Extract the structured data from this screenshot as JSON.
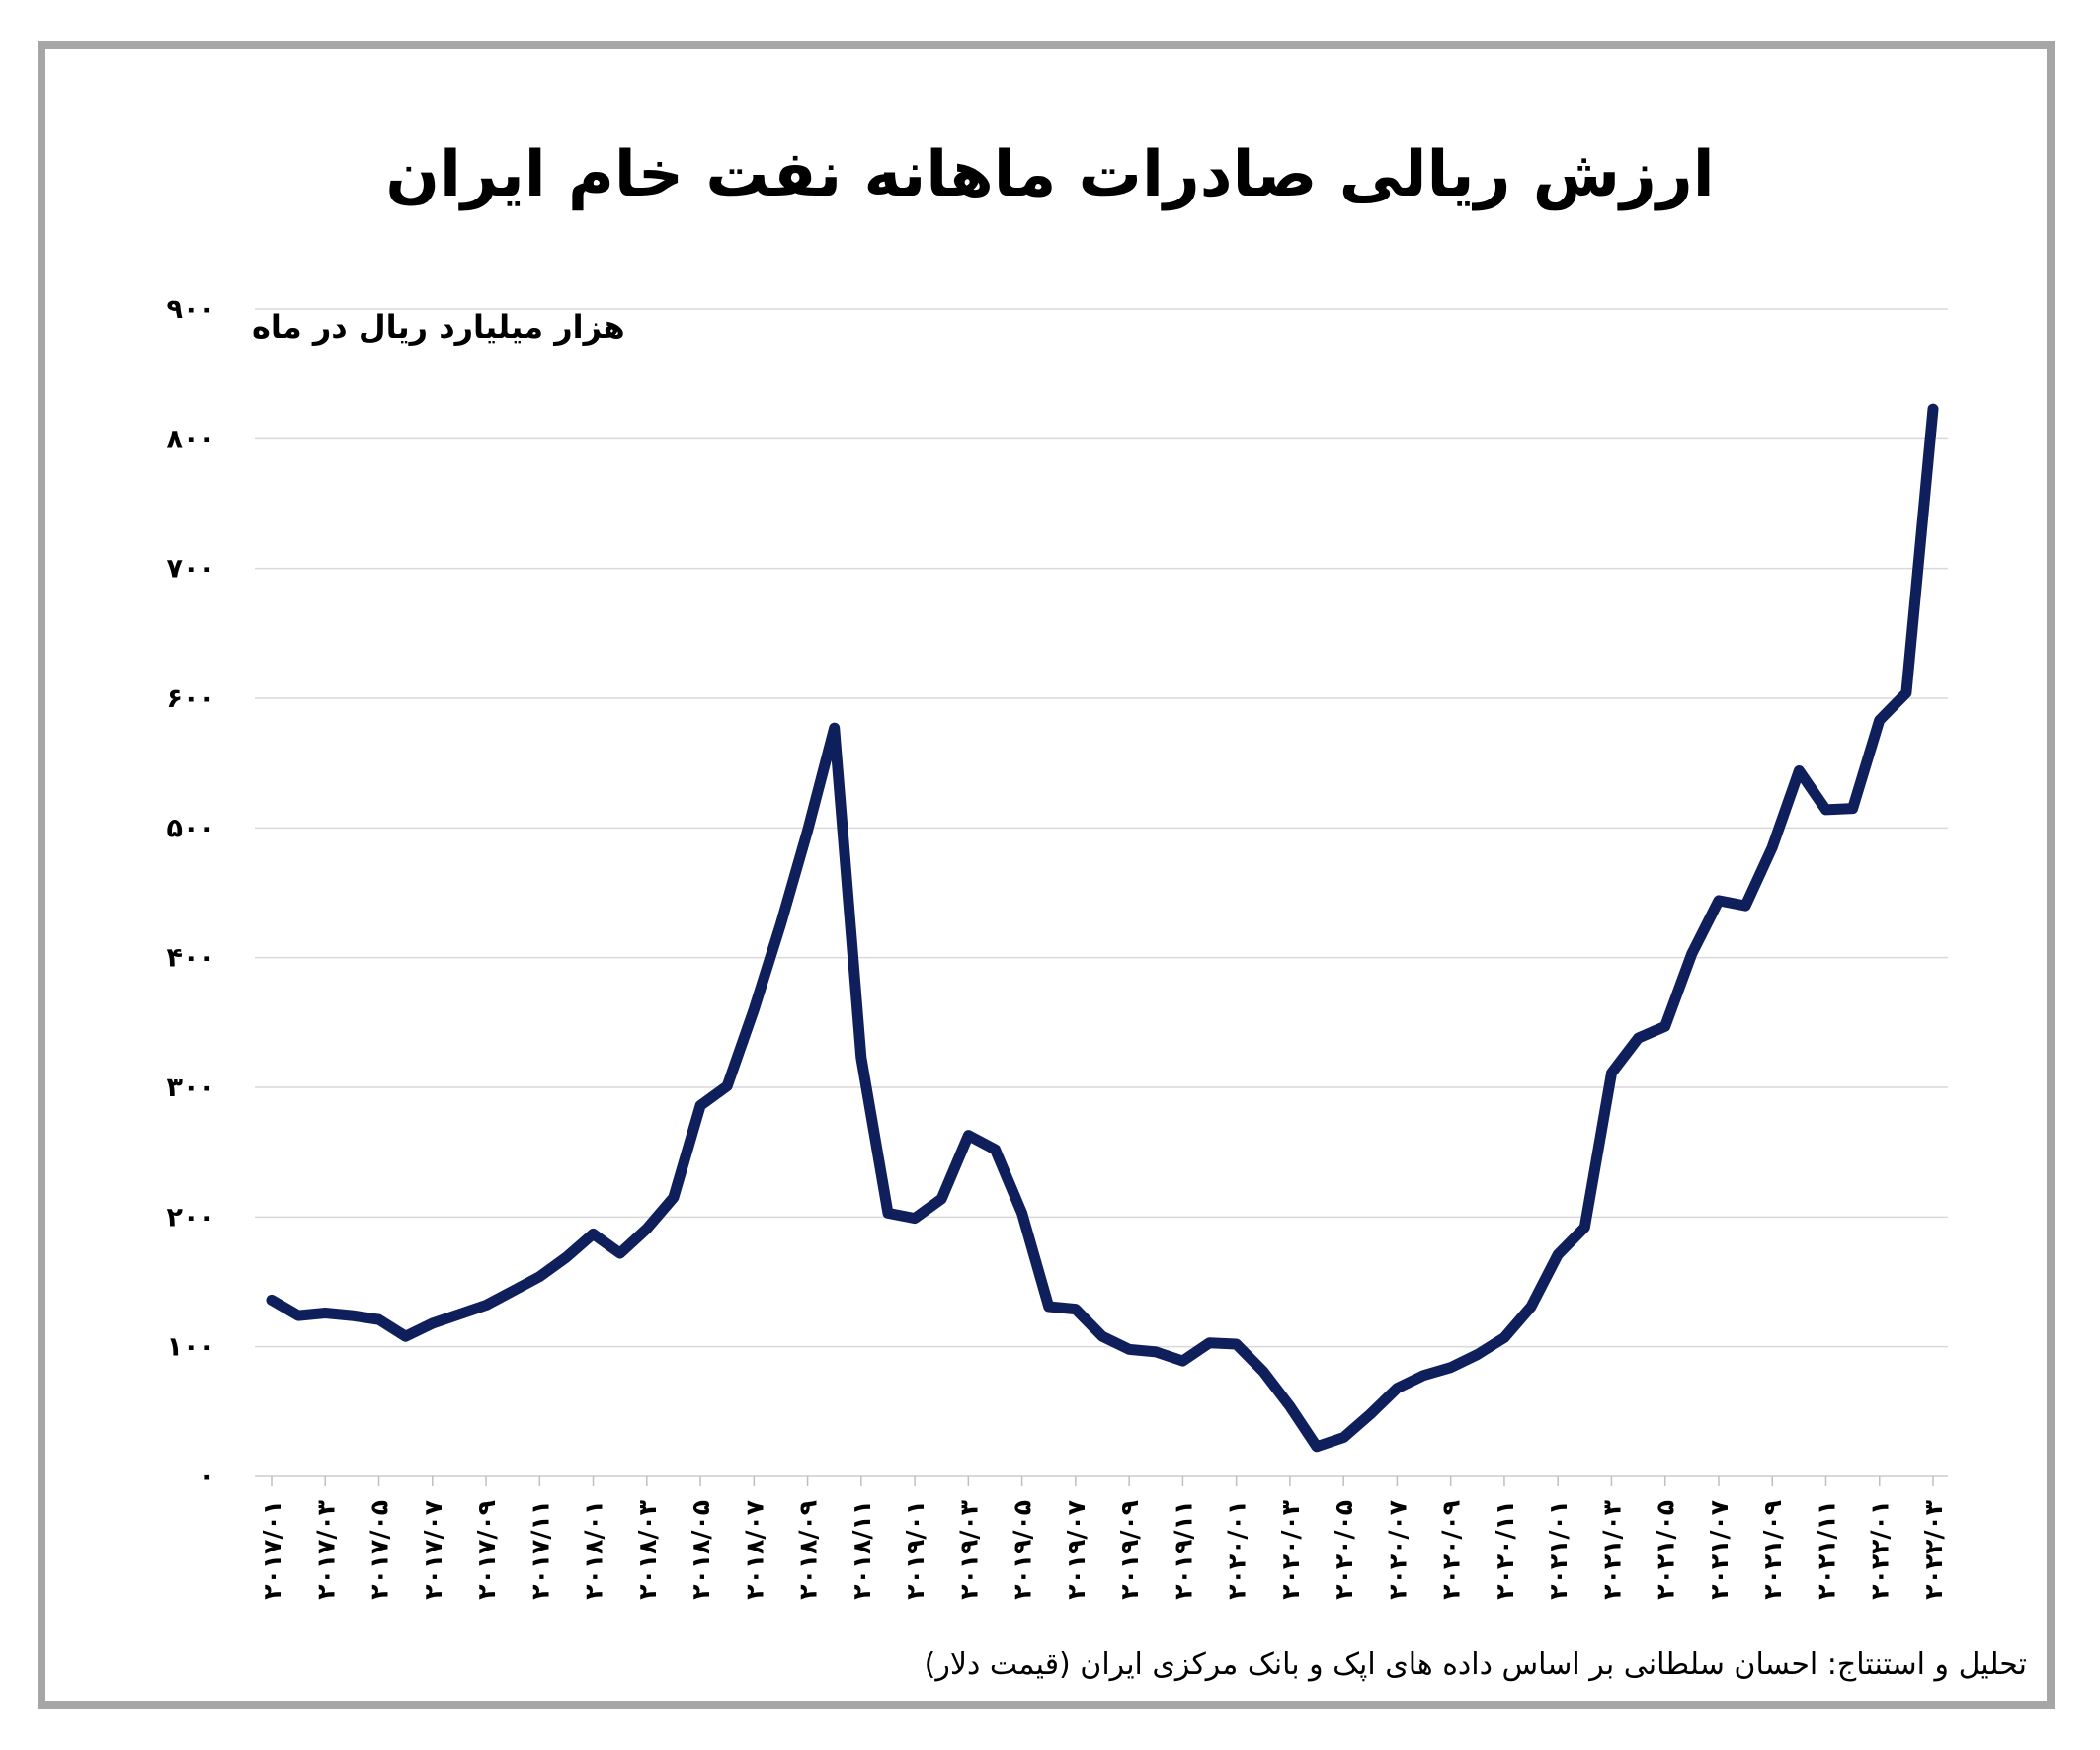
{
  "colors": {
    "line": "#0f1f5c",
    "grid": "#d9d9d9",
    "frame": "#a6a6a6"
  },
  "chart_data": {
    "type": "line",
    "title": "ارزش ریالی صادرات ماهانه نفت خام ایران",
    "ylabel": "هزار میلیارد ریال در ماه",
    "source": "تحلیل و استنتاج: احسان سلطانی بر اساس داده های اپک و بانک مرکزی ایران (قیمت دلار)",
    "ylim": [
      0,
      900
    ],
    "yticks": [
      0,
      100,
      200,
      300,
      400,
      500,
      600,
      700,
      800,
      900
    ],
    "ytick_labels": [
      "۰",
      "۱۰۰",
      "۲۰۰",
      "۳۰۰",
      "۴۰۰",
      "۵۰۰",
      "۶۰۰",
      "۷۰۰",
      "۸۰۰",
      "۹۰۰"
    ],
    "grid": true,
    "legend": "none",
    "x": [
      "2017/01",
      "2017/02",
      "2017/03",
      "2017/04",
      "2017/05",
      "2017/06",
      "2017/07",
      "2017/08",
      "2017/09",
      "2017/10",
      "2017/11",
      "2017/12",
      "2018/01",
      "2018/02",
      "2018/03",
      "2018/04",
      "2018/05",
      "2018/06",
      "2018/07",
      "2018/08",
      "2018/09",
      "2018/10",
      "2018/11",
      "2018/12",
      "2019/01",
      "2019/02",
      "2019/03",
      "2019/04",
      "2019/05",
      "2019/06",
      "2019/07",
      "2019/08",
      "2019/09",
      "2019/10",
      "2019/11",
      "2019/12",
      "2020/01",
      "2020/02",
      "2020/03",
      "2020/04",
      "2020/05",
      "2020/06",
      "2020/07",
      "2020/08",
      "2020/09",
      "2020/10",
      "2020/11",
      "2020/12",
      "2021/01",
      "2021/02",
      "2021/03",
      "2021/04",
      "2021/05",
      "2021/06",
      "2021/07",
      "2021/08",
      "2021/09",
      "2021/10",
      "2021/11",
      "2021/12",
      "2022/01",
      "2022/02",
      "2022/03"
    ],
    "xtick_labels": [
      "۲۰۱۷/۰۱",
      "۲۰۱۷/۰۳",
      "۲۰۱۷/۰۵",
      "۲۰۱۷/۰۷",
      "۲۰۱۷/۰۹",
      "۲۰۱۷/۱۱",
      "۲۰۱۸/۰۱",
      "۲۰۱۸/۰۳",
      "۲۰۱۸/۰۵",
      "۲۰۱۸/۰۷",
      "۲۰۱۸/۰۹",
      "۲۰۱۸/۱۱",
      "۲۰۱۹/۰۱",
      "۲۰۱۹/۰۳",
      "۲۰۱۹/۰۵",
      "۲۰۱۹/۰۷",
      "۲۰۱۹/۰۹",
      "۲۰۱۹/۱۱",
      "۲۰۲۰/۰۱",
      "۲۰۲۰/۰۳",
      "۲۰۲۰/۰۵",
      "۲۰۲۰/۰۷",
      "۲۰۲۰/۰۹",
      "۲۰۲۰/۱۱",
      "۲۰۲۱/۰۱",
      "۲۰۲۱/۰۳",
      "۲۰۲۱/۰۵",
      "۲۰۲۱/۰۷",
      "۲۰۲۱/۰۹",
      "۲۰۲۱/۱۱",
      "۲۰۲۲/۰۱",
      "۲۰۲۲/۰۳"
    ],
    "series": [
      {
        "values": [
          136,
          124,
          126,
          124,
          121,
          108,
          118,
          125,
          132,
          143,
          154,
          169,
          187,
          172,
          191,
          215,
          286,
          301,
          360,
          426,
          498,
          577,
          323,
          203,
          199,
          214,
          263,
          252,
          203,
          131,
          129,
          108,
          98,
          96,
          89,
          103,
          102,
          81,
          54,
          23,
          30,
          48,
          68,
          78,
          84,
          94,
          107,
          131,
          171,
          192,
          311,
          338,
          347,
          403,
          444,
          440,
          485,
          544,
          514,
          515,
          583,
          604,
          823
        ]
      }
    ]
  }
}
